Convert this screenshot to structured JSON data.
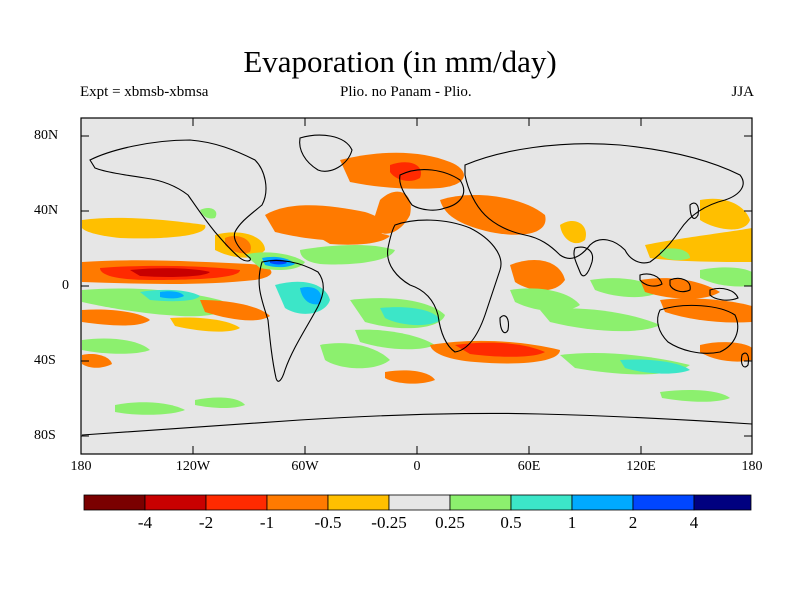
{
  "title": "Evaporation (in mm/day)",
  "subtitle_left": "Expt = xbmsb-xbmsa",
  "subtitle_center": "Plio. no Panam - Plio.",
  "subtitle_right": "JJA",
  "y_ticks": [
    "80N",
    "40N",
    "0",
    "40S",
    "80S"
  ],
  "x_ticks": [
    "180",
    "120W",
    "60W",
    "0",
    "60E",
    "120E",
    "180"
  ],
  "colorbar": {
    "labels": [
      "-4",
      "-2",
      "-1",
      "-0.5",
      "-0.25",
      "0.25",
      "0.5",
      "1",
      "2",
      "4"
    ],
    "colors": [
      "#7a0000",
      "#c80000",
      "#ff2a00",
      "#ff7a00",
      "#ffbf00",
      "#e6e6e6",
      "#8cf06e",
      "#3ce6c8",
      "#00aaff",
      "#0046ff",
      "#000080"
    ]
  },
  "colors": {
    "neutral": "#e6e6e6",
    "coast": "#000000"
  }
}
